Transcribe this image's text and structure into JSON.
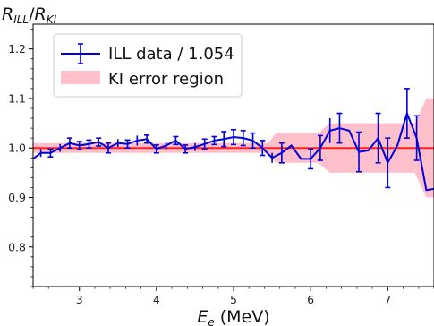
{
  "chart_data": {
    "type": "line",
    "xlabel_main": "E",
    "xlabel_sub": "e",
    "xlabel_unit": " (MeV)",
    "ylabel_num_main": "R",
    "ylabel_num_sub": "ILL",
    "ylabel_sep": "/",
    "ylabel_den_main": "R",
    "ylabel_den_sub": "KI",
    "xlim": [
      2.4,
      7.6
    ],
    "ylim": [
      0.72,
      1.25
    ],
    "xticks": [
      3,
      4,
      5,
      6,
      7
    ],
    "xtick_labels": [
      "3",
      "4",
      "5",
      "6",
      "7"
    ],
    "yticks": [
      0.8,
      0.9,
      1.0,
      1.1,
      1.2
    ],
    "ytick_labels": [
      "0.8",
      "0.9",
      "1.0",
      "1.1",
      "1.2"
    ],
    "legend_placement": "top-left",
    "reference_line": {
      "y": 1.0,
      "color": "#ff2020"
    },
    "series": [
      {
        "name": "ILL data / 1.054",
        "color": "#0000dd",
        "x": [
          2.375,
          2.5,
          2.625,
          2.75,
          2.875,
          3.0,
          3.125,
          3.25,
          3.375,
          3.5,
          3.625,
          3.75,
          3.875,
          4.0,
          4.125,
          4.25,
          4.375,
          4.5,
          4.625,
          4.75,
          4.875,
          5.0,
          5.125,
          5.25,
          5.375,
          5.5,
          5.625,
          5.75,
          5.875,
          6.0,
          6.125,
          6.25,
          6.375,
          6.5,
          6.625,
          6.75,
          6.875,
          7.0,
          7.125,
          7.25,
          7.375,
          7.5,
          7.625
        ],
        "y": [
          0.975,
          0.99,
          0.99,
          1.0,
          1.01,
          1.005,
          1.008,
          1.012,
          1.0,
          1.01,
          1.008,
          1.015,
          1.018,
          0.998,
          1.005,
          1.015,
          0.998,
          1.002,
          1.008,
          1.015,
          1.018,
          1.022,
          1.02,
          1.015,
          1.0,
          0.98,
          0.99,
          1.005,
          0.978,
          0.978,
          1.0,
          1.035,
          1.04,
          1.035,
          0.992,
          0.995,
          1.02,
          0.97,
          1.005,
          1.07,
          1.02,
          0.915,
          0.918
        ],
        "err": [
          0.008,
          0.008,
          0.008,
          0.008,
          0.01,
          0.008,
          0.008,
          0.008,
          0.01,
          0.008,
          0.008,
          0.01,
          0.008,
          0.008,
          0.008,
          0.008,
          0.008,
          0.008,
          0.01,
          0.008,
          0.015,
          0.015,
          0.015,
          0.015,
          0.015,
          0.01,
          0.02,
          0.0,
          0.0,
          0.02,
          0.025,
          0.025,
          0.03,
          0.0,
          0.04,
          0.0,
          0.05,
          0.05,
          0.0,
          0.05,
          0.045,
          0.0,
          0.0
        ],
        "caps": [
          false,
          false,
          true,
          false,
          true,
          true,
          true,
          true,
          true,
          false,
          true,
          false,
          true,
          true,
          false,
          true,
          true,
          false,
          true,
          true,
          true,
          true,
          true,
          true,
          true,
          false,
          true,
          false,
          false,
          true,
          true,
          false,
          true,
          false,
          true,
          false,
          true,
          true,
          false,
          true,
          true,
          false,
          false
        ]
      }
    ],
    "error_region": {
      "name": "KI error region",
      "color": "#ffc0cb",
      "x": [
        2.4,
        5.45,
        5.55,
        6.1,
        6.25,
        7.35,
        7.5,
        7.6
      ],
      "upper": [
        1.01,
        1.01,
        1.03,
        1.03,
        1.05,
        1.05,
        1.1,
        1.1
      ],
      "lower": [
        0.99,
        0.99,
        0.97,
        0.97,
        0.95,
        0.95,
        0.9,
        0.9
      ]
    }
  }
}
